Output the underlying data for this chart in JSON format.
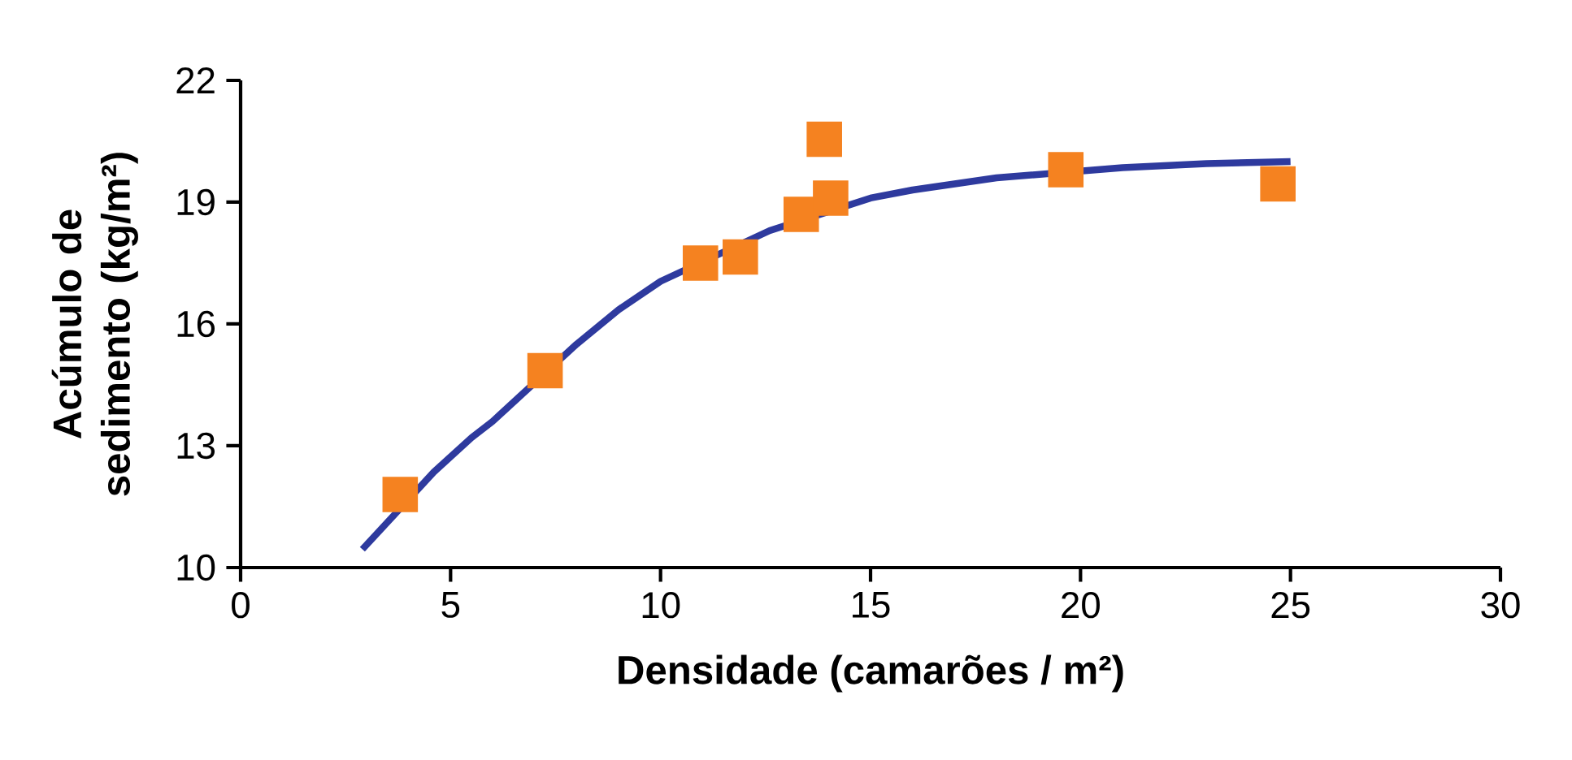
{
  "chart_data": {
    "type": "scatter",
    "xlabel": "Densidade (camarões / m²)",
    "ylabel": "Acúmulo de sedimento (kg/m²)",
    "xlim": [
      0,
      30
    ],
    "ylim": [
      10,
      22
    ],
    "xticks": [
      0,
      5,
      10,
      15,
      20,
      25,
      30
    ],
    "yticks": [
      10,
      13,
      16,
      19,
      22
    ],
    "grid": false,
    "series": [
      {
        "type": "line",
        "color": "#2e3a9e",
        "marker": "none",
        "line_style": "solid",
        "x": [
          2.9,
          4.6,
          5.5,
          6,
          8,
          9,
          10,
          12.6,
          15,
          16,
          17,
          18,
          21,
          22,
          23,
          25
        ],
        "values": [
          10.45,
          12.35,
          13.2,
          13.6,
          15.5,
          16.35,
          17.05,
          18.3,
          19.1,
          19.3,
          19.45,
          19.6,
          19.85,
          19.9,
          19.95,
          20.0
        ]
      },
      {
        "color": "#f58220",
        "marker": "square",
        "x": [
          3.8,
          7.25,
          10.95,
          11.9,
          13.35,
          13.9,
          14.05,
          19.65,
          24.7
        ],
        "values": [
          11.8,
          14.85,
          17.5,
          17.65,
          18.7,
          20.55,
          19.1,
          19.8,
          19.45
        ]
      }
    ]
  }
}
